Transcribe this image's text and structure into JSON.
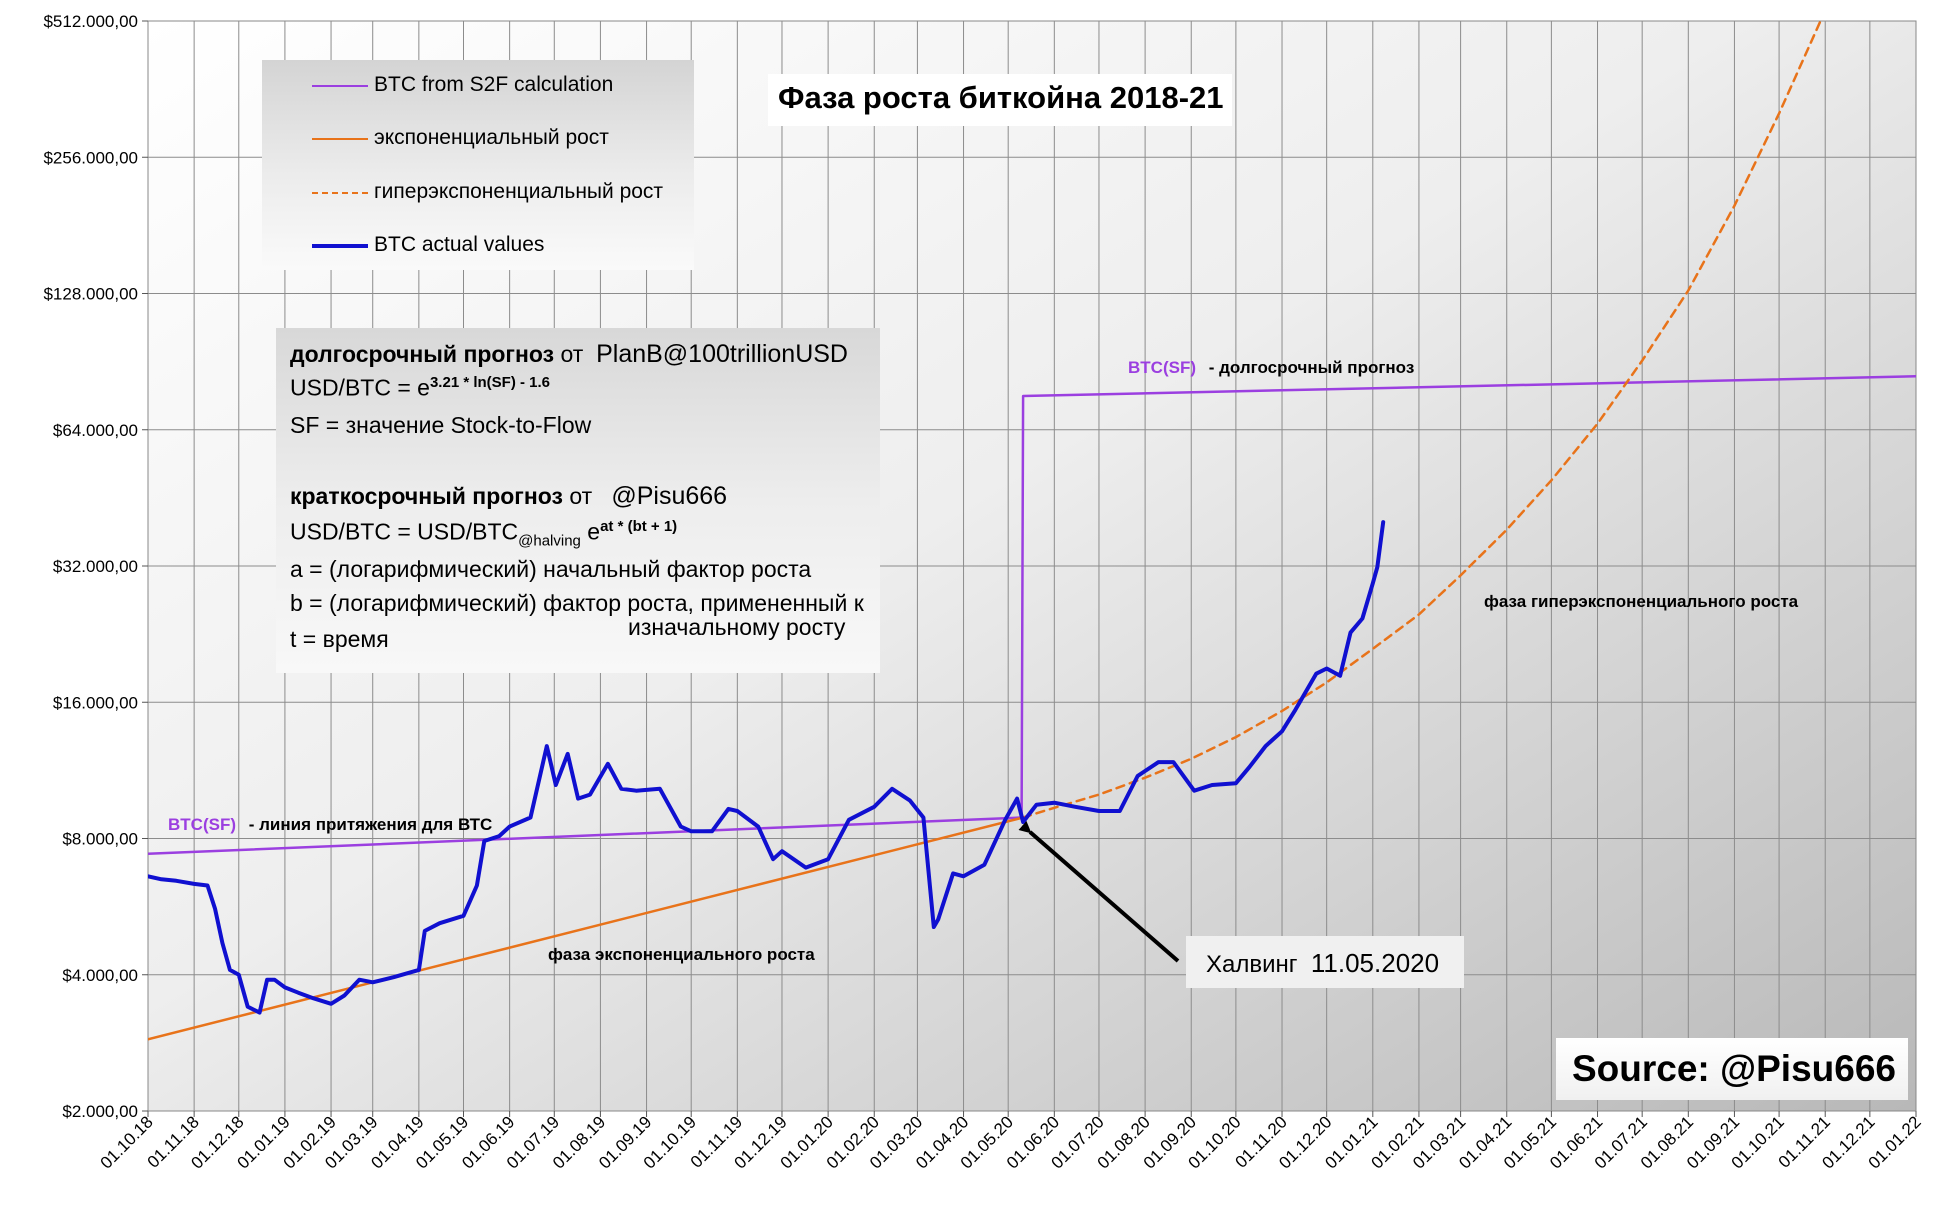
{
  "chart_data": {
    "type": "line",
    "title": "Фаза роста биткойна  2018-21",
    "y_scale": "log2",
    "ylim": [
      2000,
      512000
    ],
    "y_ticks": [
      {
        "value": 2000,
        "label": "$2.000,00"
      },
      {
        "value": 4000,
        "label": "$4.000,00"
      },
      {
        "value": 8000,
        "label": "$8.000,00"
      },
      {
        "value": 16000,
        "label": "$16.000,00"
      },
      {
        "value": 32000,
        "label": "$32.000,00"
      },
      {
        "value": 64000,
        "label": "$64.000,00"
      },
      {
        "value": 128000,
        "label": "$128.000,00"
      },
      {
        "value": 256000,
        "label": "$256.000,00"
      },
      {
        "value": 512000,
        "label": "$512.000,00"
      }
    ],
    "xlim": [
      "2018-10-01",
      "2022-01-01"
    ],
    "x_ticks": [
      "01.10.18",
      "01.11.18",
      "01.12.18",
      "01.01.19",
      "01.02.19",
      "01.03.19",
      "01.04.19",
      "01.05.19",
      "01.06.19",
      "01.07.19",
      "01.08.19",
      "01.09.19",
      "01.10.19",
      "01.11.19",
      "01.12.19",
      "01.01.20",
      "01.02.20",
      "01.03.20",
      "01.04.20",
      "01.05.20",
      "01.06.20",
      "01.07.20",
      "01.08.20",
      "01.09.20",
      "01.10.20",
      "01.11.20",
      "01.12.20",
      "01.01.21",
      "01.02.21",
      "01.03.21",
      "01.04.21",
      "01.05.21",
      "01.06.21",
      "01.07.21",
      "01.08.21",
      "01.09.21",
      "01.10.21",
      "01.11.21",
      "01.12.21",
      "01.01.22"
    ],
    "grid": true,
    "series": [
      {
        "name": "BTC from S2F calculation",
        "color": "#9b3fe0",
        "style": "solid",
        "x": [
          "2018-10-01",
          "2020-05-10",
          "2020-05-11",
          "2022-01-01"
        ],
        "y": [
          7400,
          8900,
          76000,
          84000
        ]
      },
      {
        "name": "экспоненциальный рост",
        "color": "#e8731a",
        "style": "solid",
        "x": [
          "2018-10-01",
          "2020-05-11"
        ],
        "y": [
          2880,
          8900
        ]
      },
      {
        "name": "гиперэкспоненциальный рост",
        "color": "#e8731a",
        "style": "dashed",
        "x": [
          "2020-05-11",
          "2020-06-01",
          "2020-07-01",
          "2020-08-01",
          "2020-09-01",
          "2020-10-01",
          "2020-11-01",
          "2020-12-01",
          "2021-01-01",
          "2021-02-01",
          "2021-03-01",
          "2021-04-01",
          "2021-05-01",
          "2021-06-01",
          "2021-07-01",
          "2021-08-01",
          "2021-09-01",
          "2021-10-01",
          "2021-11-01"
        ],
        "y": [
          8900,
          9350,
          10000,
          10900,
          12000,
          13400,
          15300,
          17700,
          21000,
          25000,
          30500,
          38500,
          49500,
          66000,
          91000,
          130000,
          200000,
          320000,
          540000
        ]
      },
      {
        "name": "BTC actual values",
        "color": "#1010d0",
        "style": "solid",
        "x": [
          "2018-10-01",
          "2018-10-10",
          "2018-10-20",
          "2018-11-01",
          "2018-11-10",
          "2018-11-15",
          "2018-11-20",
          "2018-11-25",
          "2018-12-01",
          "2018-12-07",
          "2018-12-15",
          "2018-12-20",
          "2018-12-25",
          "2019-01-01",
          "2019-01-10",
          "2019-01-20",
          "2019-02-01",
          "2019-02-10",
          "2019-02-20",
          "2019-03-01",
          "2019-03-15",
          "2019-04-01",
          "2019-04-05",
          "2019-04-15",
          "2019-05-01",
          "2019-05-10",
          "2019-05-15",
          "2019-05-25",
          "2019-06-01",
          "2019-06-15",
          "2019-06-26",
          "2019-07-02",
          "2019-07-10",
          "2019-07-17",
          "2019-07-25",
          "2019-08-06",
          "2019-08-15",
          "2019-08-25",
          "2019-09-10",
          "2019-09-24",
          "2019-10-01",
          "2019-10-15",
          "2019-10-26",
          "2019-11-01",
          "2019-11-15",
          "2019-11-25",
          "2019-12-01",
          "2019-12-17",
          "2020-01-01",
          "2020-01-15",
          "2020-02-01",
          "2020-02-13",
          "2020-02-25",
          "2020-03-05",
          "2020-03-12",
          "2020-03-15",
          "2020-03-25",
          "2020-04-01",
          "2020-04-15",
          "2020-04-29",
          "2020-05-07",
          "2020-05-11",
          "2020-05-20",
          "2020-06-01",
          "2020-06-15",
          "2020-07-01",
          "2020-07-15",
          "2020-07-27",
          "2020-08-10",
          "2020-08-20",
          "2020-09-03",
          "2020-09-15",
          "2020-10-01",
          "2020-10-10",
          "2020-10-21",
          "2020-11-01",
          "2020-11-10",
          "2020-11-24",
          "2020-12-01",
          "2020-12-10",
          "2020-12-17",
          "2020-12-25",
          "2021-01-01",
          "2021-01-04",
          "2021-01-08"
        ],
        "y": [
          6600,
          6500,
          6450,
          6350,
          6300,
          5600,
          4700,
          4100,
          4000,
          3400,
          3300,
          3900,
          3900,
          3750,
          3650,
          3550,
          3450,
          3600,
          3900,
          3850,
          3950,
          4100,
          5000,
          5200,
          5400,
          6300,
          7900,
          8100,
          8500,
          8900,
          12800,
          10500,
          12300,
          9800,
          10000,
          11700,
          10300,
          10200,
          10300,
          8500,
          8300,
          8300,
          9300,
          9200,
          8500,
          7200,
          7500,
          6900,
          7200,
          8800,
          9400,
          10300,
          9700,
          8900,
          5100,
          5300,
          6700,
          6600,
          7000,
          8800,
          9800,
          8700,
          9500,
          9600,
          9400,
          9200,
          9200,
          11000,
          11800,
          11800,
          10200,
          10500,
          10600,
          11500,
          12800,
          13800,
          15400,
          18500,
          19000,
          18300,
          22800,
          24500,
          29300,
          31800,
          40000
        ]
      }
    ],
    "annotations": {
      "sf_long_label": "BTC(SF)",
      "sf_long_desc": "-  долгосрочный прогноз",
      "sf_attr_label": "BTC(SF)",
      "sf_attr_desc": "- линия притяжения для ВТС",
      "exp_phase": "фаза экспоненциального роста",
      "hyper_phase": "фаза гиперэкспоненциального роста"
    }
  },
  "legend": {
    "items": [
      {
        "label": "BTC from S2F calculation",
        "color": "#9b3fe0",
        "style": "solid"
      },
      {
        "label": "экспоненциальный рост",
        "color": "#e8731a",
        "style": "solid"
      },
      {
        "label": "гиперэкспоненциальный рост",
        "color": "#e8731a",
        "style": "dashed"
      },
      {
        "label": "BTC actual values",
        "color": "#1010d0",
        "style": "solid"
      }
    ]
  },
  "formula": {
    "long_title": "долгосрочный прогноз",
    "long_from": "от",
    "long_author": "PlanB@100trillionUSD",
    "long_eq_base": "USD/BTC = e",
    "long_eq_exp": "3.21 * ln(SF) - 1.6",
    "sf_def": "SF = значение Stock-to-Flow",
    "short_title": "краткосрочный прогноз",
    "short_from": "от",
    "short_author": "@Pisu666",
    "short_eq_base": "USD/BTC = USD/BTC",
    "short_eq_sub": "@halving",
    "short_eq_e": "e",
    "short_eq_exp": "at * (bt + 1)",
    "a_def": "a = (логарифмический) начальный фактор роста",
    "b_def_1": "b = (логарифмический) фактор роста, примененный к",
    "b_def_2": "изначальному росту",
    "t_def": "t = время"
  },
  "halving": {
    "label": "Халвинг",
    "date": "11.05.2020"
  },
  "source": {
    "text": "Source: @Pisu666"
  }
}
